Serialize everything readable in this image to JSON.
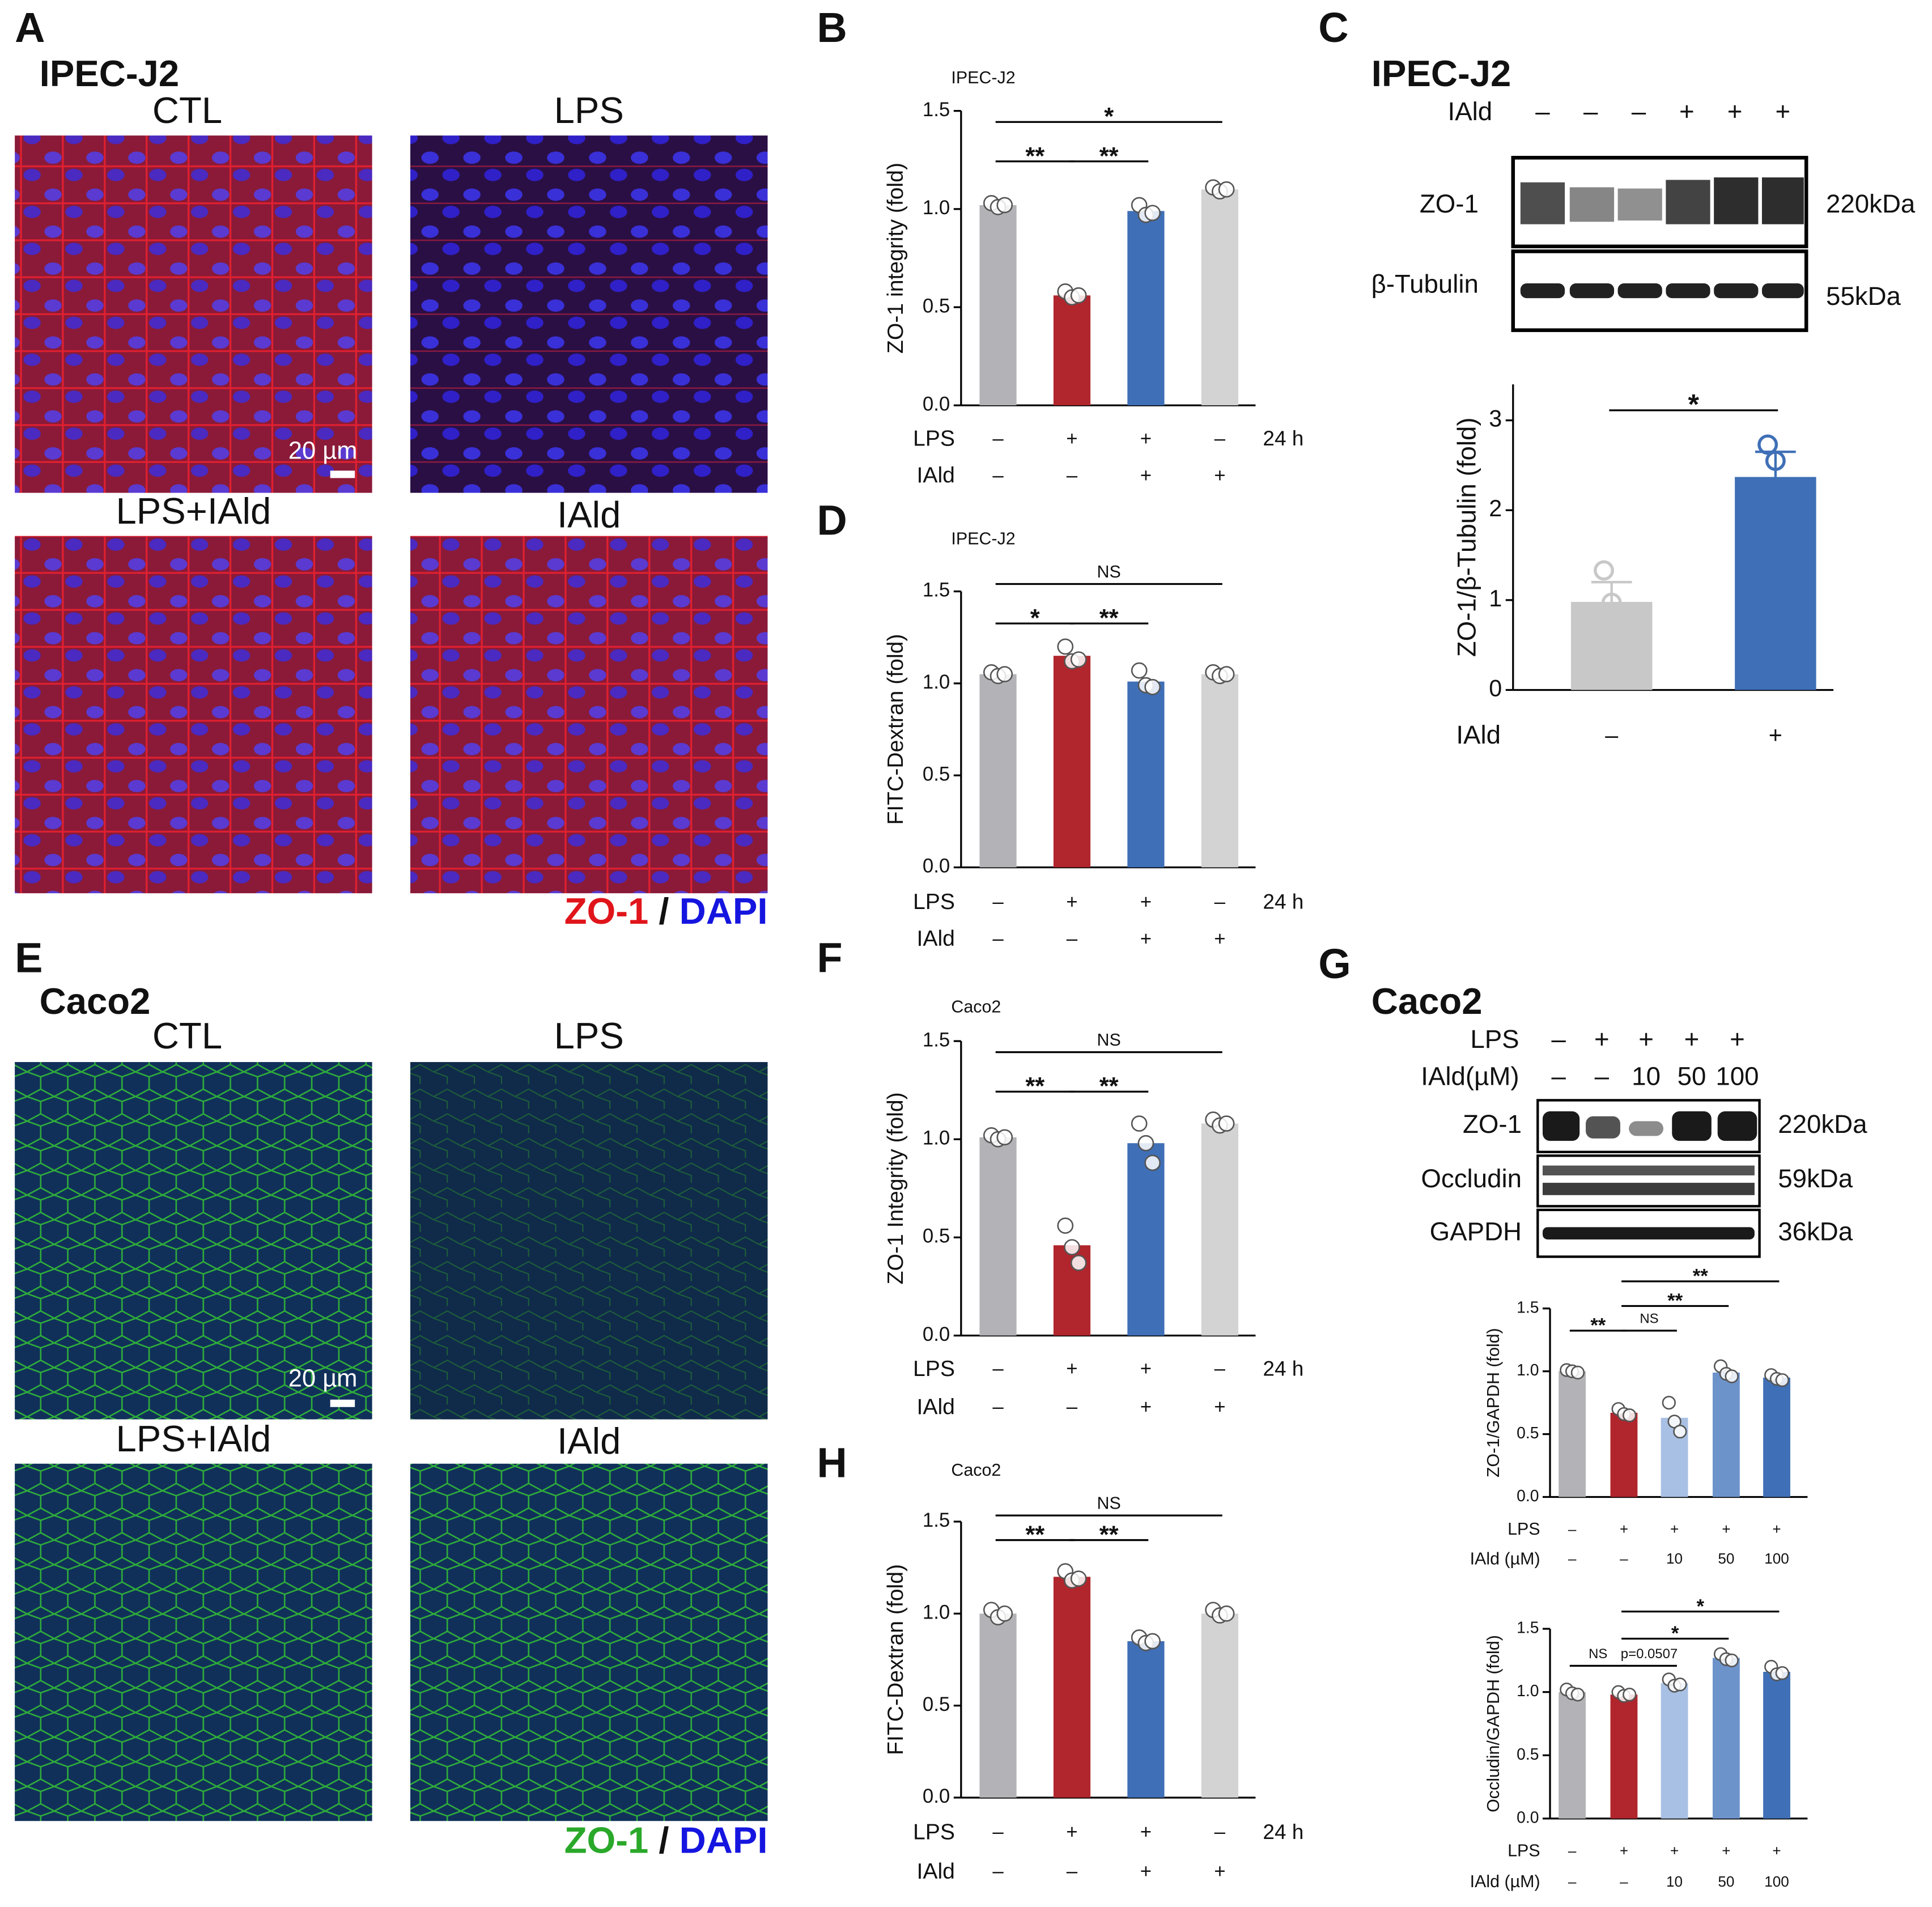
{
  "panel_a": {
    "panel": "A",
    "cell_line": "IPEC-J2",
    "groups": [
      "CTL",
      "LPS",
      "LPS+IAld",
      "IAld"
    ],
    "scale_bar": "20 µm",
    "stain": "ZO-1",
    "separator": "/",
    "counterstain": "DAPI"
  },
  "panel_e": {
    "panel": "E",
    "cell_line": "Caco2",
    "groups": [
      "CTL",
      "LPS",
      "LPS+IAld",
      "IAld"
    ],
    "scale_bar": "20 µm",
    "stain": "ZO-1",
    "separator": "/",
    "counterstain": "DAPI"
  },
  "panel_c_blot": {
    "panel": "C",
    "cell_line": "IPEC-J2",
    "row_label": "IAld",
    "lanes": [
      "–",
      "–",
      "–",
      "+",
      "+",
      "+"
    ],
    "bands": [
      {
        "name": "ZO-1",
        "size": "220kDa"
      },
      {
        "name": "β-Tubulin",
        "size": "55kDa"
      }
    ]
  },
  "panel_g_blot": {
    "panel": "G",
    "cell_line": "Caco2",
    "rows": [
      {
        "name": "LPS",
        "values": [
          "–",
          "+",
          "+",
          "+",
          "+"
        ]
      },
      {
        "name": "IAld(µM)",
        "values": [
          "–",
          "–",
          "10",
          "50",
          "100"
        ]
      }
    ],
    "bands": [
      {
        "name": "ZO-1",
        "size": "220kDa"
      },
      {
        "name": "Occludin",
        "size": "59kDa"
      },
      {
        "name": "GAPDH",
        "size": "36kDa"
      }
    ]
  },
  "chart_data": [
    {
      "type": "bar",
      "panel": "B",
      "title": "IPEC-J2",
      "ylabel": "ZO-1 integrity (fold)",
      "ylim": [
        0,
        1.5
      ],
      "yticks": [
        {
          "value": 0,
          "label": "0.0"
        },
        {
          "value": 0.5,
          "label": "0.5"
        },
        {
          "value": 1,
          "label": "1.0"
        },
        {
          "value": 1.5,
          "label": "1.5"
        }
      ],
      "values": [
        1.02,
        0.56,
        0.99,
        1.1
      ],
      "colors": [
        "#b3b3b7",
        "#b1252c",
        "#3f6fb6",
        "#d3d3d3"
      ],
      "points": [
        [
          1.03,
          1.01,
          1.02
        ],
        [
          0.58,
          0.55,
          0.56
        ],
        [
          1.02,
          0.97,
          0.98
        ],
        [
          1.11,
          1.09,
          1.1
        ]
      ],
      "conditions": [
        {
          "name": "LPS",
          "values": [
            "–",
            "+",
            "+",
            "–"
          ]
        },
        {
          "name": "IAld",
          "values": [
            "–",
            "–",
            "+",
            "+"
          ]
        }
      ],
      "duration": "24 h",
      "brackets": [
        {
          "label": "**",
          "between": [
            0,
            1
          ]
        },
        {
          "label": "**",
          "between": [
            1,
            2
          ]
        },
        {
          "label": "*",
          "between": [
            0,
            3
          ]
        }
      ]
    },
    {
      "type": "bar",
      "panel": "D",
      "title": "IPEC-J2",
      "ylabel": "FITC-Dextran (fold)",
      "ylim": [
        0,
        1.5
      ],
      "yticks": [
        {
          "value": 0,
          "label": "0.0"
        },
        {
          "value": 0.5,
          "label": "0.5"
        },
        {
          "value": 1,
          "label": "1.0"
        },
        {
          "value": 1.5,
          "label": "1.5"
        }
      ],
      "values": [
        1.05,
        1.15,
        1.01,
        1.05
      ],
      "colors": [
        "#b3b3b7",
        "#b1252c",
        "#3f6fb6",
        "#d3d3d3"
      ],
      "points": [
        [
          1.06,
          1.04,
          1.05
        ],
        [
          1.2,
          1.12,
          1.13
        ],
        [
          1.07,
          0.99,
          0.98
        ],
        [
          1.06,
          1.04,
          1.05
        ]
      ],
      "conditions": [
        {
          "name": "LPS",
          "values": [
            "–",
            "+",
            "+",
            "–"
          ]
        },
        {
          "name": "IAld",
          "values": [
            "–",
            "–",
            "+",
            "+"
          ]
        }
      ],
      "duration": "24 h",
      "brackets": [
        {
          "label": "*",
          "between": [
            0,
            1
          ]
        },
        {
          "label": "**",
          "between": [
            1,
            2
          ]
        },
        {
          "label": "NS",
          "between": [
            0,
            3
          ]
        }
      ]
    },
    {
      "type": "bar",
      "panel": "F",
      "title": "Caco2",
      "ylabel": "ZO-1 Integrity (fold)",
      "ylim": [
        0,
        1.5
      ],
      "yticks": [
        {
          "value": 0,
          "label": "0.0"
        },
        {
          "value": 0.5,
          "label": "0.5"
        },
        {
          "value": 1,
          "label": "1.0"
        },
        {
          "value": 1.5,
          "label": "1.5"
        }
      ],
      "values": [
        1.01,
        0.46,
        0.98,
        1.08
      ],
      "colors": [
        "#b3b3b7",
        "#b1252c",
        "#3f6fb6",
        "#d3d3d3"
      ],
      "points": [
        [
          1.02,
          1.0,
          1.01
        ],
        [
          0.56,
          0.45,
          0.37
        ],
        [
          1.08,
          0.98,
          0.88
        ],
        [
          1.1,
          1.07,
          1.08
        ]
      ],
      "conditions": [
        {
          "name": "LPS",
          "values": [
            "–",
            "+",
            "+",
            "–"
          ]
        },
        {
          "name": "IAld",
          "values": [
            "–",
            "–",
            "+",
            "+"
          ]
        }
      ],
      "duration": "24 h",
      "brackets": [
        {
          "label": "**",
          "between": [
            0,
            1
          ]
        },
        {
          "label": "**",
          "between": [
            1,
            2
          ]
        },
        {
          "label": "NS",
          "between": [
            0,
            3
          ]
        }
      ]
    },
    {
      "type": "bar",
      "panel": "H",
      "title": "Caco2",
      "ylabel": "FITC-Dextran (fold)",
      "ylim": [
        0,
        1.5
      ],
      "yticks": [
        {
          "value": 0,
          "label": "0.0"
        },
        {
          "value": 0.5,
          "label": "0.5"
        },
        {
          "value": 1,
          "label": "1.0"
        },
        {
          "value": 1.5,
          "label": "1.5"
        }
      ],
      "values": [
        1.0,
        1.2,
        0.85,
        1.0
      ],
      "colors": [
        "#b3b3b7",
        "#b1252c",
        "#3f6fb6",
        "#d3d3d3"
      ],
      "points": [
        [
          1.02,
          0.98,
          1.0
        ],
        [
          1.23,
          1.18,
          1.19
        ],
        [
          0.87,
          0.84,
          0.85
        ],
        [
          1.02,
          0.99,
          1.0
        ]
      ],
      "conditions": [
        {
          "name": "LPS",
          "values": [
            "–",
            "+",
            "+",
            "–"
          ]
        },
        {
          "name": "IAld",
          "values": [
            "–",
            "–",
            "+",
            "+"
          ]
        }
      ],
      "duration": "24 h",
      "brackets": [
        {
          "label": "**",
          "between": [
            0,
            1
          ]
        },
        {
          "label": "**",
          "between": [
            1,
            2
          ]
        },
        {
          "label": "NS",
          "between": [
            0,
            3
          ]
        }
      ]
    },
    {
      "type": "bar",
      "ylabel": "ZO-1/β-Tubulin (fold)",
      "ylim": [
        0,
        3.4
      ],
      "yticks": [
        0,
        1,
        2,
        3
      ],
      "values": [
        0.98,
        2.37
      ],
      "errors": [
        0.22,
        0.28
      ],
      "colors": [
        "#c8c8c8",
        "#3f6fb6"
      ],
      "points": [
        [
          1.33,
          0.97,
          0.55
        ],
        [
          2.73,
          2.55,
          1.82
        ]
      ],
      "conditions": [
        {
          "name": "IAld",
          "values": [
            "–",
            "+"
          ]
        }
      ],
      "brackets": [
        {
          "label": "*",
          "between": [
            0,
            1
          ]
        }
      ]
    },
    {
      "type": "bar",
      "ylabel": "ZO-1/GAPDH (fold)",
      "ylim": [
        0,
        1.5
      ],
      "yticks": [
        {
          "value": 0,
          "label": "0.0"
        },
        {
          "value": 0.5,
          "label": "0.5"
        },
        {
          "value": 1,
          "label": "1.0"
        },
        {
          "value": 1.5,
          "label": "1.5"
        }
      ],
      "values": [
        1.0,
        0.67,
        0.63,
        0.99,
        0.95
      ],
      "colors": [
        "#b3b3b7",
        "#b1252c",
        "#a8c0e3",
        "#6d93cb",
        "#3f6fb6"
      ],
      "points": [
        [
          1.01,
          1.0,
          0.99
        ],
        [
          0.7,
          0.66,
          0.65
        ],
        [
          0.75,
          0.6,
          0.52
        ],
        [
          1.04,
          0.98,
          0.96
        ],
        [
          0.97,
          0.94,
          0.93
        ]
      ],
      "conditions": [
        {
          "name": "LPS",
          "values": [
            "–",
            "+",
            "+",
            "+",
            "+"
          ]
        },
        {
          "name": "IAld (µM)",
          "values": [
            "–",
            "–",
            "10",
            "50",
            "100"
          ]
        }
      ],
      "brackets": [
        {
          "label": "**",
          "between": [
            0,
            1
          ]
        },
        {
          "label": "NS",
          "between": [
            1,
            2
          ]
        },
        {
          "label": "**",
          "between": [
            1,
            3
          ]
        },
        {
          "label": "**",
          "between": [
            1,
            4
          ]
        }
      ]
    },
    {
      "type": "bar",
      "ylabel": "Occludin/GAPDH (fold)",
      "ylim": [
        0,
        1.5
      ],
      "yticks": [
        {
          "value": 0,
          "label": "0.0"
        },
        {
          "value": 0.5,
          "label": "0.5"
        },
        {
          "value": 1,
          "label": "1.0"
        },
        {
          "value": 1.5,
          "label": "1.5"
        }
      ],
      "values": [
        1.0,
        0.98,
        1.07,
        1.27,
        1.16
      ],
      "colors": [
        "#b3b3b7",
        "#b1252c",
        "#a8c0e3",
        "#6d93cb",
        "#3f6fb6"
      ],
      "points": [
        [
          1.02,
          0.99,
          0.98
        ],
        [
          1.0,
          0.97,
          0.98
        ],
        [
          1.1,
          1.05,
          1.06
        ],
        [
          1.3,
          1.26,
          1.25
        ],
        [
          1.2,
          1.14,
          1.15
        ]
      ],
      "conditions": [
        {
          "name": "LPS",
          "values": [
            "–",
            "+",
            "+",
            "+",
            "+"
          ]
        },
        {
          "name": "IAld (µM)",
          "values": [
            "–",
            "–",
            "10",
            "50",
            "100"
          ]
        }
      ],
      "brackets": [
        {
          "label": "NS",
          "between": [
            0,
            1
          ]
        },
        {
          "label": "p=0.0507",
          "between": [
            1,
            2
          ]
        },
        {
          "label": "*",
          "between": [
            1,
            3
          ]
        },
        {
          "label": "*",
          "between": [
            1,
            4
          ]
        }
      ]
    }
  ]
}
